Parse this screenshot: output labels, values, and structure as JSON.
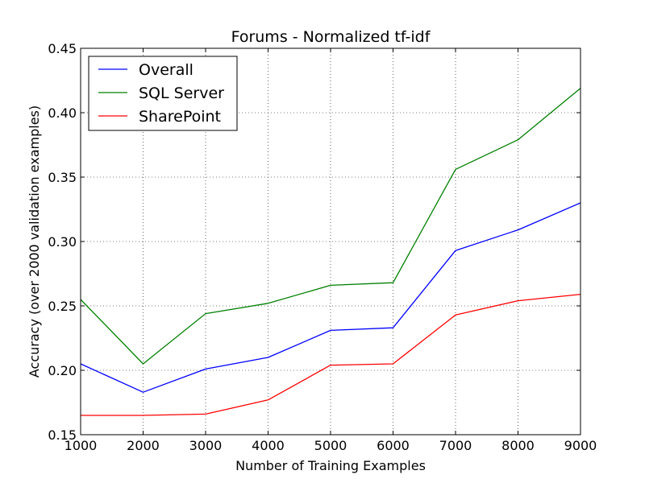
{
  "chart_data": {
    "type": "line",
    "title": "Forums - Normalized tf-idf",
    "xlabel": "Number of Training Examples",
    "ylabel": "Accuracy (over 2000 validation examples)",
    "x": [
      1000,
      2000,
      3000,
      4000,
      5000,
      6000,
      7000,
      8000,
      9000
    ],
    "xlim": [
      1000,
      9000
    ],
    "ylim": [
      0.15,
      0.45
    ],
    "xticks": [
      "1000",
      "2000",
      "3000",
      "4000",
      "5000",
      "6000",
      "7000",
      "8000",
      "9000"
    ],
    "yticks": [
      "0.15",
      "0.20",
      "0.25",
      "0.30",
      "0.35",
      "0.40",
      "0.45"
    ],
    "grid": true,
    "legend_position": "top-left",
    "series": [
      {
        "name": "Overall",
        "color": "#0000ff",
        "values": [
          0.205,
          0.183,
          0.201,
          0.21,
          0.231,
          0.233,
          0.293,
          0.309,
          0.33
        ]
      },
      {
        "name": "SQL Server",
        "color": "#008000",
        "values": [
          0.255,
          0.205,
          0.244,
          0.252,
          0.266,
          0.268,
          0.356,
          0.379,
          0.419
        ]
      },
      {
        "name": "SharePoint",
        "color": "#ff0000",
        "values": [
          0.165,
          0.165,
          0.166,
          0.177,
          0.204,
          0.205,
          0.243,
          0.254,
          0.259
        ]
      }
    ]
  }
}
